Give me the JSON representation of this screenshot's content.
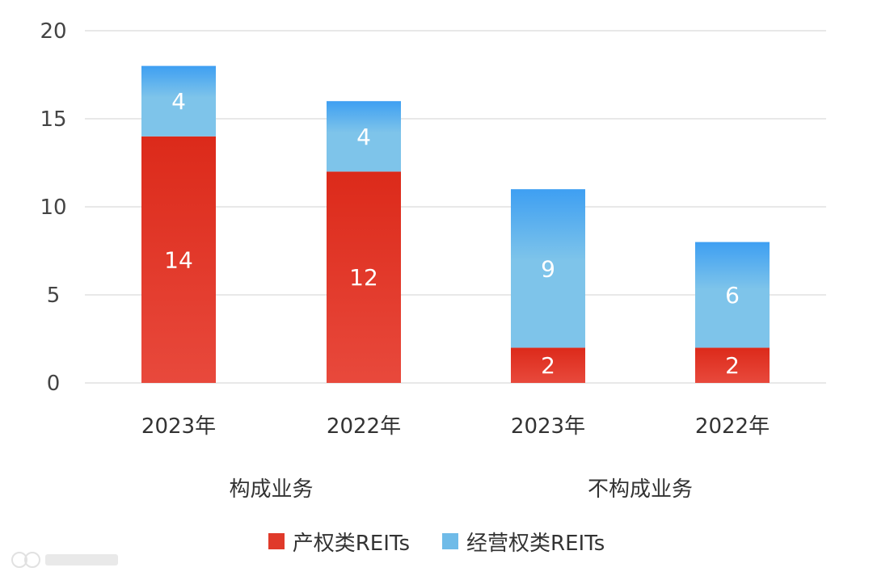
{
  "chart_data": {
    "type": "bar",
    "stacked": true,
    "categories": [
      "2023年",
      "2022年",
      "2023年",
      "2022年"
    ],
    "groups": [
      {
        "label": "构成业务",
        "categories": [
          0,
          1
        ]
      },
      {
        "label": "不构成业务",
        "categories": [
          2,
          3
        ]
      }
    ],
    "series": [
      {
        "name": "产权类REITs",
        "values": [
          14,
          12,
          2,
          2
        ],
        "color": "#e03a2a"
      },
      {
        "name": "经营权类REITs",
        "values": [
          4,
          4,
          9,
          6
        ],
        "color": "#74bde8"
      }
    ],
    "ylim": [
      0,
      20
    ],
    "yticks": [
      0,
      5,
      10,
      15,
      20
    ],
    "grid": true,
    "legend_position": "bottom"
  },
  "legend": {
    "item1": "产权类REITs",
    "item2": "经营权类REITs"
  },
  "watermark_icon": "brand-logo-icon"
}
